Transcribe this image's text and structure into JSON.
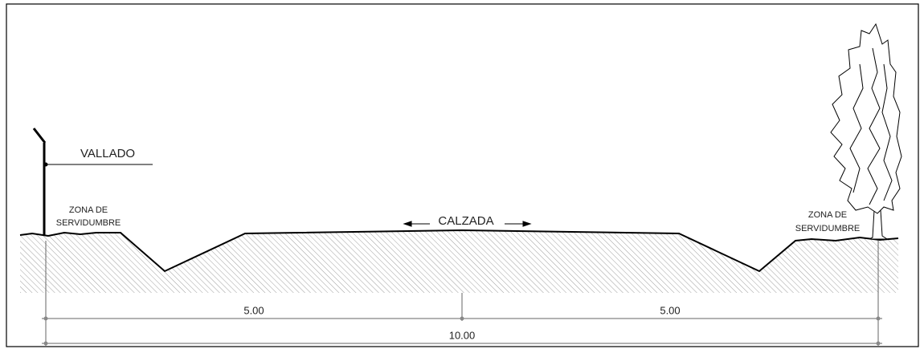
{
  "labels": {
    "fence": "VALLADO",
    "left_zone": [
      "ZONA DE",
      "SERVIDUMBRE"
    ],
    "right_zone": [
      "ZONA DE",
      "SERVIDUMBRE"
    ],
    "roadway": "CALZADA"
  },
  "dimensions": [
    "5.00",
    "5.00",
    "10.00"
  ]
}
